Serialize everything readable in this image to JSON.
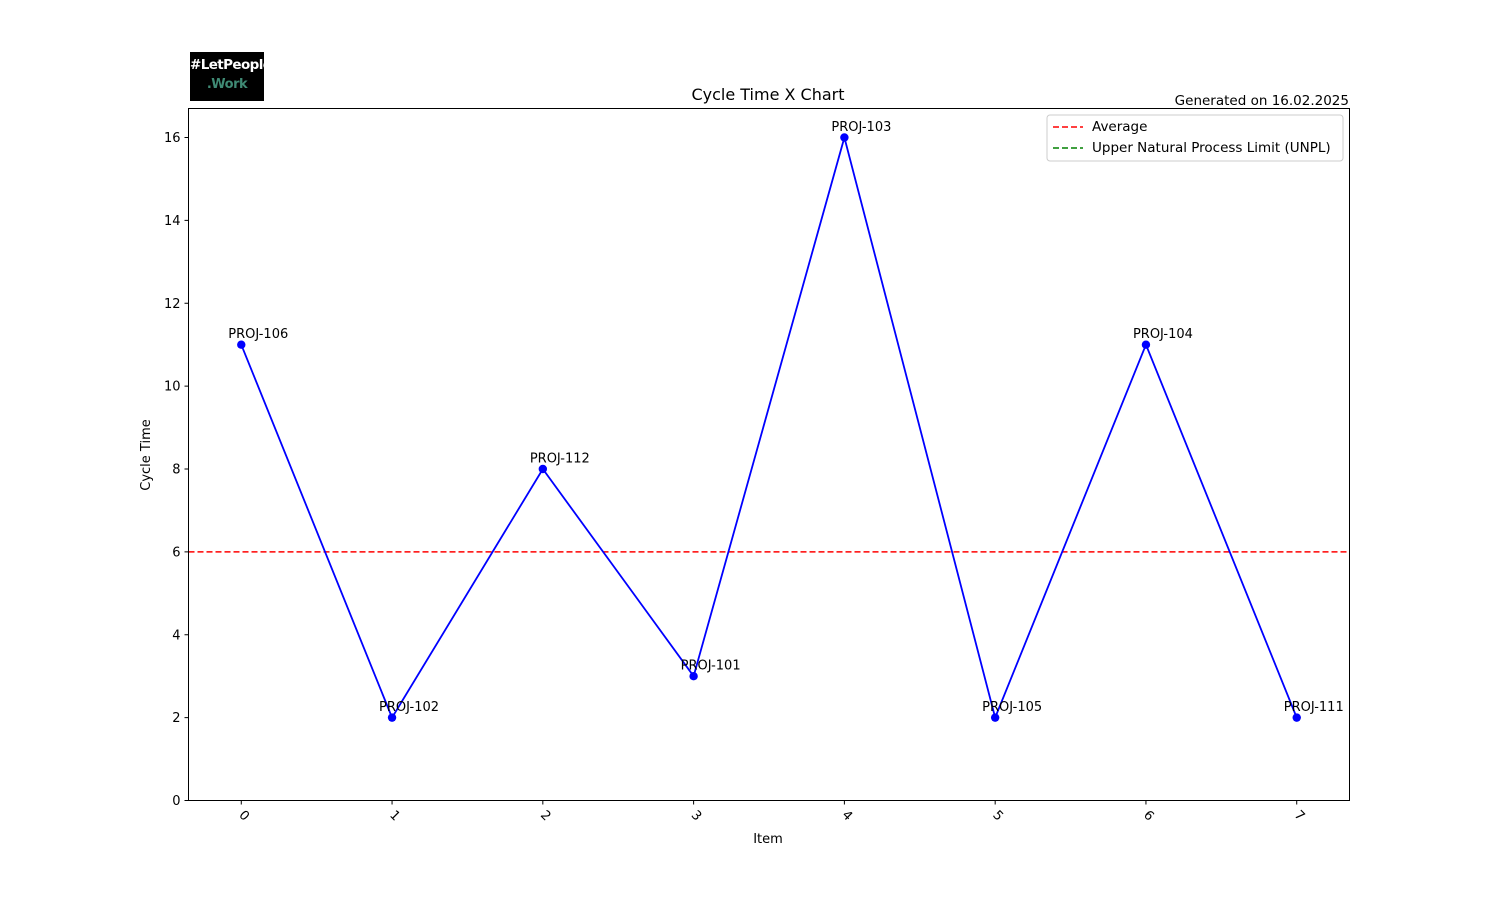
{
  "logo": {
    "line1": "#LetPeople",
    "line2": ".Work"
  },
  "generated_label": "Generated on 16.02.2025",
  "chart_data": {
    "type": "line",
    "title": "Cycle Time X Chart",
    "xlabel": "Item",
    "ylabel": "Cycle Time",
    "x": [
      0,
      1,
      2,
      3,
      4,
      5,
      6,
      7
    ],
    "xtick_labels": [
      "0",
      "1",
      "2",
      "3",
      "4",
      "5",
      "6",
      "7"
    ],
    "ylim": [
      0,
      16.7
    ],
    "yticks": [
      0,
      2,
      4,
      6,
      8,
      10,
      12,
      14,
      16
    ],
    "grid": false,
    "legend_position": "top-right",
    "series": [
      {
        "values": [
          11,
          2,
          8,
          3,
          16,
          2,
          11,
          2
        ],
        "labels": [
          "PROJ-106",
          "PROJ-102",
          "PROJ-112",
          "PROJ-101",
          "PROJ-103",
          "PROJ-105",
          "PROJ-104",
          "PROJ-111"
        ],
        "color": "#0000ff",
        "marker": "circle"
      }
    ],
    "reference_lines": [
      {
        "name": "Average",
        "value": 6,
        "color": "#ff0000",
        "style": "dashed"
      },
      {
        "name": "Upper Natural Process Limit (UNPL)",
        "value": null,
        "color": "#008000",
        "style": "dashed"
      }
    ]
  }
}
